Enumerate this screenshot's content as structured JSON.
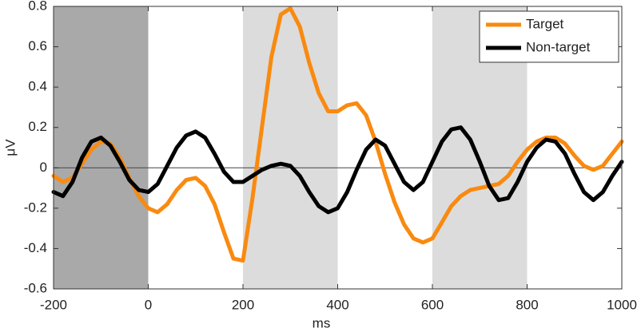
{
  "chart_data": {
    "type": "line",
    "xlabel": "ms",
    "ylabel": "μV",
    "xlim": [
      -200,
      1000
    ],
    "ylim": [
      -0.6,
      0.8
    ],
    "xticks": [
      -200,
      0,
      200,
      400,
      600,
      800,
      1000
    ],
    "yticks": [
      -0.6,
      -0.4,
      -0.2,
      0,
      0.2,
      0.4,
      0.6,
      0.8
    ],
    "reference_line": 0,
    "shaded_regions": [
      {
        "range": [
          -200,
          0
        ],
        "color": "#a9a9a9"
      },
      {
        "range": [
          200,
          400
        ],
        "color": "#dcdcdc"
      },
      {
        "range": [
          600,
          800
        ],
        "color": "#dcdcdc"
      }
    ],
    "legend": "upper right",
    "x": [
      -200,
      -180,
      -160,
      -140,
      -120,
      -100,
      -80,
      -60,
      -40,
      -20,
      0,
      20,
      40,
      60,
      80,
      100,
      120,
      140,
      160,
      180,
      200,
      220,
      240,
      260,
      280,
      300,
      320,
      340,
      360,
      380,
      400,
      420,
      440,
      460,
      480,
      500,
      520,
      540,
      560,
      580,
      600,
      620,
      640,
      660,
      680,
      700,
      720,
      740,
      760,
      780,
      800,
      820,
      840,
      860,
      880,
      900,
      920,
      940,
      960,
      980,
      1000
    ],
    "series": [
      {
        "name": "Target",
        "color": "#f98a10",
        "values": [
          -0.04,
          -0.07,
          -0.05,
          0.02,
          0.09,
          0.13,
          0.12,
          0.05,
          -0.05,
          -0.14,
          -0.2,
          -0.22,
          -0.18,
          -0.11,
          -0.06,
          -0.05,
          -0.09,
          -0.18,
          -0.32,
          -0.45,
          -0.46,
          -0.15,
          0.2,
          0.55,
          0.76,
          0.79,
          0.7,
          0.52,
          0.37,
          0.28,
          0.28,
          0.31,
          0.32,
          0.26,
          0.13,
          -0.03,
          -0.17,
          -0.28,
          -0.35,
          -0.37,
          -0.35,
          -0.27,
          -0.19,
          -0.14,
          -0.11,
          -0.1,
          -0.09,
          -0.08,
          -0.04,
          0.03,
          0.09,
          0.13,
          0.15,
          0.15,
          0.12,
          0.06,
          0.01,
          -0.01,
          0.01,
          0.07,
          0.13
        ]
      },
      {
        "name": "Non-target",
        "color": "#000000",
        "values": [
          -0.12,
          -0.14,
          -0.07,
          0.05,
          0.13,
          0.15,
          0.11,
          0.03,
          -0.06,
          -0.11,
          -0.12,
          -0.08,
          0.01,
          0.1,
          0.16,
          0.18,
          0.15,
          0.07,
          -0.02,
          -0.07,
          -0.07,
          -0.04,
          -0.01,
          0.01,
          0.02,
          0.01,
          -0.04,
          -0.12,
          -0.19,
          -0.22,
          -0.2,
          -0.12,
          -0.01,
          0.09,
          0.14,
          0.11,
          0.02,
          -0.07,
          -0.11,
          -0.07,
          0.03,
          0.13,
          0.19,
          0.2,
          0.14,
          0.03,
          -0.09,
          -0.16,
          -0.15,
          -0.07,
          0.03,
          0.1,
          0.14,
          0.13,
          0.07,
          -0.03,
          -0.12,
          -0.16,
          -0.12,
          -0.04,
          0.03
        ]
      }
    ]
  }
}
